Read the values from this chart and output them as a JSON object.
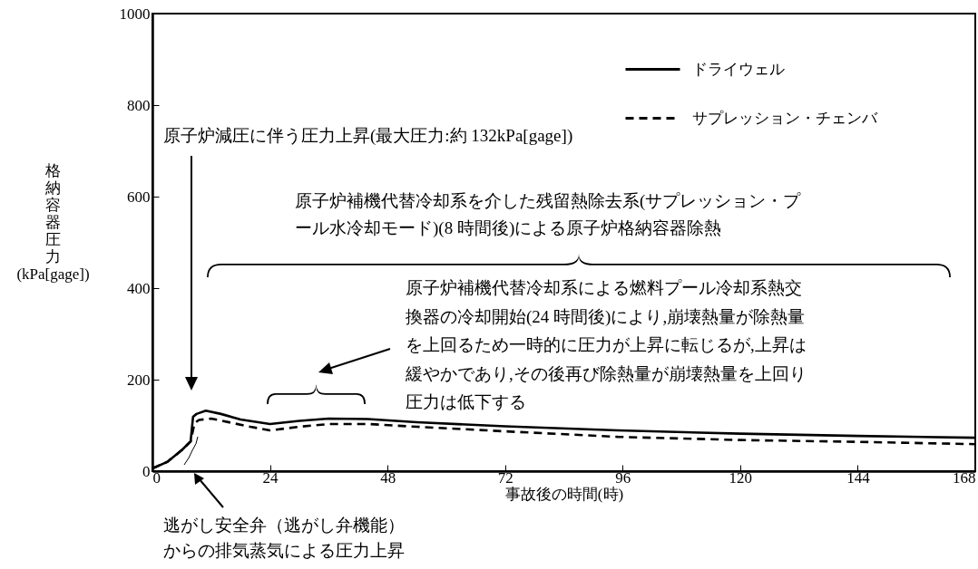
{
  "chart_data": {
    "type": "line",
    "ylabel": "格納容器圧力 (kPa[gage])",
    "xlabel": "事故後の時間(時)",
    "xlim": [
      0,
      168
    ],
    "xticks": [
      0,
      24,
      48,
      72,
      96,
      120,
      144,
      168
    ],
    "ylim": [
      0,
      1000
    ],
    "yticks": [
      0,
      200,
      400,
      600,
      800,
      1000
    ],
    "grid": false,
    "legend": "top right",
    "marker": "none",
    "series": [
      {
        "name": "ドライウェル",
        "color": "#000000",
        "line_style": "solid",
        "x": [
          0,
          3,
          6,
          7.8,
          8.3,
          9,
          10.9,
          14,
          18,
          24,
          30,
          36,
          44,
          54,
          72,
          95,
          120,
          144,
          168
        ],
        "values": [
          6,
          20,
          46,
          65,
          119,
          125,
          132,
          125,
          113,
          103,
          110,
          115,
          114,
          107,
          98,
          89,
          82,
          77,
          73
        ]
      },
      {
        "name": "サプレッション・チェンバ",
        "color": "#000000",
        "line_style": "dashed",
        "x": [
          0,
          3,
          6,
          7.8,
          8.6,
          9.5,
          12,
          16,
          20,
          24,
          30,
          36,
          44,
          54,
          72,
          95,
          120,
          144,
          168
        ],
        "values": [
          6,
          20,
          46,
          65,
          105,
          112,
          115,
          106,
          97,
          89,
          97,
          103,
          103,
          97,
          87,
          75,
          68,
          64,
          59
        ]
      }
    ],
    "annotations": [
      "原子炉減圧に伴う圧力上昇(最大圧力:約 132kPa[gage])",
      "原子炉補機代替冷却系を介した残留熱除去系(サプレッション・プール水冷却モード)(8 時間後)による原子炉格納容器除熱",
      "原子炉補機代替冷却系による燃料プール冷却系熱交換器の冷却開始(24 時間後)により,崩壊熱量が除熱量を上回るため一時的に圧力が上昇に転じるが,上昇は緩やかであり,その後再び除熱量が崩壊熱量を上回り圧力は低下する",
      "逃がし安全弁（逃がし弁機能）からの排気蒸気による圧力上昇"
    ]
  }
}
